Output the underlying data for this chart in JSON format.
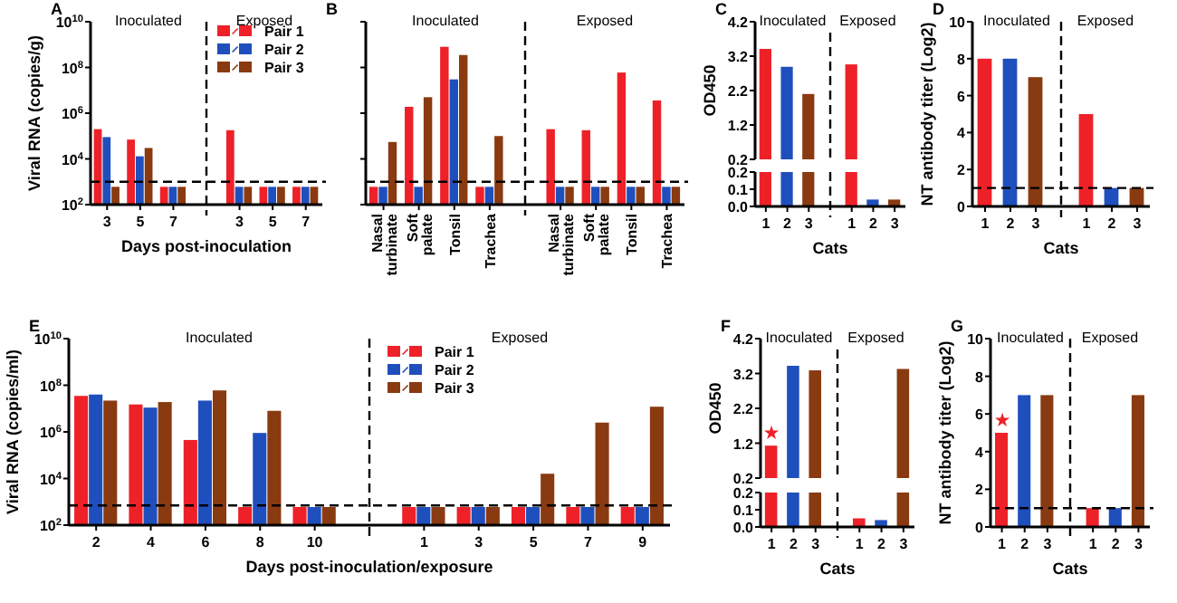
{
  "chart_data": [
    {
      "type": "bar",
      "title": "A",
      "ylabel": "Viral RNA (copies/g)",
      "xlabel": "Days post-inoculation",
      "categories": [
        "3",
        "5",
        "7",
        null,
        "3",
        "5",
        "7"
      ],
      "series": [
        {
          "name": "Pair 1",
          "color": "#ee2128",
          "values": [
            200000,
            70000,
            600,
            null,
            180000,
            600,
            600
          ]
        },
        {
          "name": "Pair 2",
          "color": "#1f4fbd",
          "values": [
            90000,
            13000,
            600,
            null,
            600,
            600,
            600
          ]
        },
        {
          "name": "Pair 3",
          "color": "#8a3a10",
          "values": [
            600,
            30000,
            600,
            null,
            600,
            600,
            600
          ]
        }
      ],
      "log": true,
      "ylim": [
        100,
        10000000000
      ],
      "yticks": [
        {
          "value": 100,
          "label": "10$^{2}$"
        },
        {
          "value": 10000,
          "label": "10$^{4}$"
        },
        {
          "value": 1000000,
          "label": "10$^{6}$"
        },
        {
          "value": 100000000,
          "label": "10$^{8}$"
        },
        {
          "value": 10000000000,
          "label": "10$^{10}$"
        }
      ],
      "ref_lines": [
        {
          "axis": "y",
          "value": 1000,
          "line_style": "dashed"
        }
      ],
      "annotations": [
        "Inoculated",
        "Exposed"
      ],
      "legend": "top right"
    },
    {
      "type": "bar",
      "title": "B",
      "categories": [
        "Nasal turbinate",
        "Soft palate",
        "Tonsil",
        "Trachea",
        null,
        "Nasal turbinate",
        "Soft palate",
        "Tonsil",
        "Trachea"
      ],
      "series": [
        {
          "color": "#ee2128",
          "values": [
            600,
            1900000,
            800000000,
            600,
            null,
            200000,
            180000,
            60000000,
            3600000
          ]
        },
        {
          "color": "#1f4fbd",
          "values": [
            600,
            600,
            30000000,
            600,
            null,
            600,
            600,
            600,
            600
          ]
        },
        {
          "color": "#8a3a10",
          "values": [
            55000,
            5000000,
            350000000,
            100000,
            null,
            600,
            600,
            600,
            600
          ]
        }
      ],
      "log": true,
      "ylim": [
        100,
        10000000000
      ],
      "yticks": [
        {
          "value": 100,
          "label": null
        },
        {
          "value": 10000,
          "label": null
        },
        {
          "value": 1000000,
          "label": null
        },
        {
          "value": 100000000,
          "label": null
        },
        {
          "value": 10000000000,
          "label": null
        }
      ],
      "tick_labels": "x",
      "ref_lines": [
        {
          "axis": "y",
          "value": 1000,
          "line_style": "dashed"
        }
      ],
      "annotations": [
        "Inoculated",
        "Exposed"
      ]
    },
    {
      "type": "bar",
      "title": "C",
      "ylabel": "OD450",
      "categories": [
        "1",
        "2",
        "3",
        null,
        "1",
        "2",
        "3"
      ],
      "values": [
        3.41,
        2.89,
        2.1,
        null,
        2.96,
        null,
        null
      ],
      "colors": [
        "#ee2128",
        "#1f4fbd",
        "#8a3a10",
        null,
        "#ee2128",
        null,
        null
      ],
      "ylim": [
        0.2,
        4.2
      ],
      "yticks": [
        0.2,
        1.2,
        2.2,
        3.2,
        4.2
      ],
      "tick_labels": "y",
      "annotations": [
        "Inoculated",
        "Exposed"
      ]
    },
    {
      "type": "bar",
      "xlabel": "Cats",
      "categories": [
        "1",
        "2",
        "3",
        null,
        "1",
        "2",
        "3"
      ],
      "values": [
        0.2,
        0.2,
        0.2,
        null,
        0.2,
        0.04,
        0.04
      ],
      "colors": [
        "#ee2128",
        "#1f4fbd",
        "#8a3a10",
        null,
        "#ee2128",
        "#1f4fbd",
        "#8a3a10"
      ],
      "ylim": [
        0,
        0.2
      ],
      "yticks": [
        {
          "value": 0,
          "label": "0.0"
        },
        0.1,
        0.2
      ]
    },
    {
      "type": "bar",
      "title": "D",
      "ylabel": "NT antibody titer (Log2)",
      "xlabel": "Cats",
      "categories": [
        "1",
        "2",
        "3",
        null,
        "1",
        "2",
        "3"
      ],
      "values": [
        8,
        8,
        7,
        null,
        5,
        1,
        1
      ],
      "colors": [
        "#ee2128",
        "#1f4fbd",
        "#8a3a10",
        null,
        "#ee2128",
        "#1f4fbd",
        "#8a3a10"
      ],
      "ylim": [
        0,
        10
      ],
      "yticks": [
        0,
        2,
        4,
        6,
        8,
        10
      ],
      "ref_lines": [
        {
          "axis": "y",
          "value": 1,
          "line_style": "dashed"
        }
      ],
      "annotations": [
        "Inoculated",
        "Exposed"
      ]
    },
    {
      "type": "bar",
      "title": "E",
      "ylabel": "Viral RNA (copies/ml)",
      "xlabel": "Days post-inoculation/exposure",
      "categories": [
        "2",
        "4",
        "6",
        "8",
        "10",
        null,
        "1",
        "3",
        "5",
        "7",
        "9"
      ],
      "series": [
        {
          "name": "Pair 1",
          "color": "#ee2128",
          "values": [
            35000000,
            15000000,
            450000,
            600,
            600,
            null,
            600,
            600,
            600,
            600,
            600
          ]
        },
        {
          "name": "Pair 2",
          "color": "#1f4fbd",
          "values": [
            40000000,
            11000000,
            22000000,
            900000,
            600,
            null,
            600,
            600,
            600,
            600,
            600
          ]
        },
        {
          "name": "Pair 3",
          "color": "#8a3a10",
          "values": [
            22000000,
            19000000,
            60000000,
            8000000,
            600,
            null,
            600,
            600,
            16000,
            2500000,
            12000000
          ]
        }
      ],
      "log": true,
      "ylim": [
        100,
        10000000000
      ],
      "yticks": [
        {
          "value": 100,
          "label": "10$^{2}$"
        },
        {
          "value": 10000,
          "label": "10$^{4}$"
        },
        {
          "value": 1000000,
          "label": "10$^{6}$"
        },
        {
          "value": 100000000,
          "label": "10$^{8}$"
        },
        {
          "value": 10000000000,
          "label": "10$^{10}$"
        }
      ],
      "ref_lines": [
        {
          "axis": "y",
          "value": 700,
          "line_style": "dashed"
        }
      ],
      "annotations": [
        "Inoculated",
        "Exposed"
      ],
      "legend": "top"
    },
    {
      "type": "bar",
      "title": "F",
      "ylabel": "OD450",
      "categories": [
        "1",
        "2",
        "3",
        null,
        "1",
        "2",
        "3"
      ],
      "values": [
        1.13,
        3.42,
        3.29,
        null,
        null,
        null,
        3.33
      ],
      "colors": [
        "#ee2128",
        "#1f4fbd",
        "#8a3a10",
        null,
        null,
        null,
        "#8a3a10"
      ],
      "ylim": [
        0.2,
        4.2
      ],
      "yticks": [
        0.2,
        1.2,
        2.2,
        3.2,
        4.2
      ],
      "tick_labels": "y",
      "annotations": [
        "Inoculated",
        "Exposed",
        {
          "text": "★",
          "x": "1",
          "y": 1.13
        }
      ]
    },
    {
      "type": "bar",
      "xlabel": "Cats",
      "categories": [
        "1",
        "2",
        "3",
        null,
        "1",
        "2",
        "3"
      ],
      "values": [
        0.2,
        0.2,
        0.2,
        null,
        0.05,
        0.04,
        0.2
      ],
      "colors": [
        "#ee2128",
        "#1f4fbd",
        "#8a3a10",
        null,
        "#ee2128",
        "#1f4fbd",
        "#8a3a10"
      ],
      "ylim": [
        0,
        0.2
      ],
      "yticks": [
        {
          "value": 0,
          "label": "0.0"
        },
        0.1,
        0.2
      ]
    },
    {
      "type": "bar",
      "title": "G",
      "ylabel": "NT antibody titer (Log2)",
      "xlabel": "Cats",
      "categories": [
        "1",
        "2",
        "3",
        null,
        "1",
        "2",
        "3"
      ],
      "values": [
        5,
        7,
        7,
        null,
        1,
        1,
        7
      ],
      "colors": [
        "#ee2128",
        "#1f4fbd",
        "#8a3a10",
        null,
        "#ee2128",
        "#1f4fbd",
        "#8a3a10"
      ],
      "ylim": [
        0,
        10
      ],
      "yticks": [
        0,
        2,
        4,
        6,
        8,
        10
      ],
      "ref_lines": [
        {
          "axis": "y",
          "value": 1,
          "line_style": "dashed"
        }
      ],
      "annotations": [
        "Inoculated",
        "Exposed",
        {
          "text": "★",
          "x": "1",
          "y": 5
        }
      ]
    }
  ]
}
